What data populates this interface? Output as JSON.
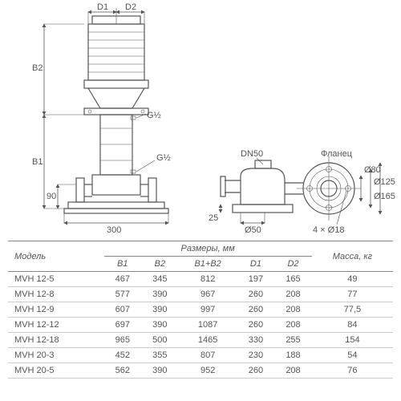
{
  "drawing": {
    "labels": {
      "D1": "D1",
      "D2": "D2",
      "B1": "B1",
      "B2": "B2",
      "h90": "90",
      "w300": "300",
      "G_upper": "G½",
      "G_lower": "G½",
      "DN50": "DN50",
      "flange": "Фланец",
      "d50": "Ø50",
      "d80": "Ø80",
      "d125": "Ø125",
      "d165": "Ø165",
      "h25": "25",
      "holes": "4 × Ø18"
    },
    "colors": {
      "line": "#555555",
      "bg": "#ffffff"
    }
  },
  "table": {
    "headers": {
      "model": "Модель",
      "sizes": "Размеры, мм",
      "B1": "B1",
      "B2": "B2",
      "B1B2": "B1+B2",
      "D1": "D1",
      "D2": "D2",
      "mass": "Масса, кг"
    },
    "rows": [
      {
        "model": "MVH 12-5",
        "B1": "467",
        "B2": "345",
        "B1B2": "812",
        "D1": "197",
        "D2": "165",
        "mass": "49"
      },
      {
        "model": "MVH 12-8",
        "B1": "577",
        "B2": "390",
        "B1B2": "967",
        "D1": "260",
        "D2": "208",
        "mass": "77"
      },
      {
        "model": "MVH 12-9",
        "B1": "607",
        "B2": "390",
        "B1B2": "997",
        "D1": "260",
        "D2": "208",
        "mass": "77,5"
      },
      {
        "model": "MVH 12-12",
        "B1": "697",
        "B2": "390",
        "B1B2": "1087",
        "D1": "260",
        "D2": "208",
        "mass": "84"
      },
      {
        "model": "MVH 12-18",
        "B1": "965",
        "B2": "500",
        "B1B2": "1465",
        "D1": "330",
        "D2": "255",
        "mass": "154"
      },
      {
        "model": "MVH 20-3",
        "B1": "452",
        "B2": "355",
        "B1B2": "807",
        "D1": "230",
        "D2": "188",
        "mass": "54"
      },
      {
        "model": "MVH 20-5",
        "B1": "562",
        "B2": "390",
        "B1B2": "952",
        "D1": "260",
        "D2": "208",
        "mass": "76"
      }
    ]
  }
}
